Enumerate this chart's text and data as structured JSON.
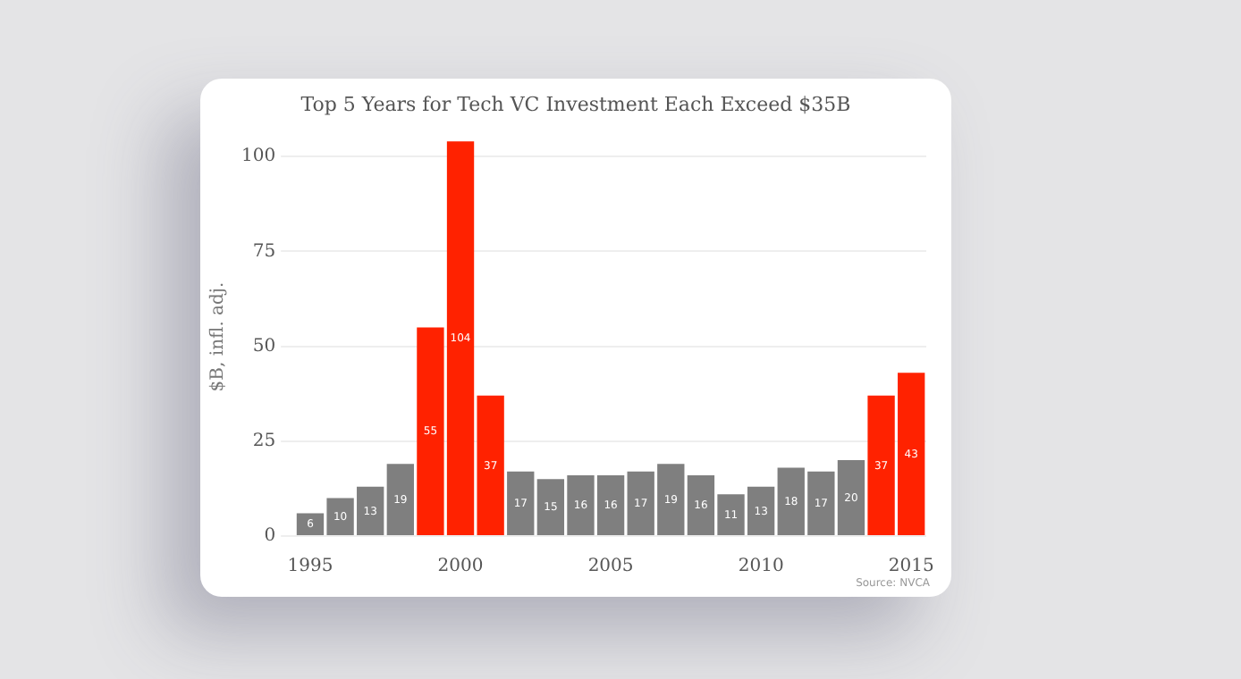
{
  "chart_data": {
    "type": "bar",
    "title": "Top 5 Years for Tech VC Investment Each Exceed $35B",
    "ylabel": "$B, infl. adj.",
    "categories": [
      "1995",
      null,
      null,
      null,
      null,
      "2000",
      null,
      null,
      null,
      null,
      "2005",
      null,
      null,
      null,
      null,
      "2010",
      null,
      null,
      null,
      null,
      "2015"
    ],
    "values": [
      6,
      10,
      13,
      19,
      55,
      104,
      37,
      17,
      15,
      16,
      16,
      17,
      19,
      16,
      11,
      13,
      18,
      17,
      20,
      37,
      43
    ],
    "colors": [
      "#7f7f7f",
      "#7f7f7f",
      "#7f7f7f",
      "#7f7f7f",
      "#ff2200",
      "#ff2200",
      "#ff2200",
      "#7f7f7f",
      "#7f7f7f",
      "#7f7f7f",
      "#7f7f7f",
      "#7f7f7f",
      "#7f7f7f",
      "#7f7f7f",
      "#7f7f7f",
      "#7f7f7f",
      "#7f7f7f",
      "#7f7f7f",
      "#7f7f7f",
      "#ff2200",
      "#ff2200"
    ],
    "ylim": [
      0,
      105
    ],
    "yticks": [
      0,
      25,
      50,
      75,
      100
    ],
    "grid": "y",
    "data_labels": true,
    "annotations": [
      "Source: NVCA"
    ]
  }
}
